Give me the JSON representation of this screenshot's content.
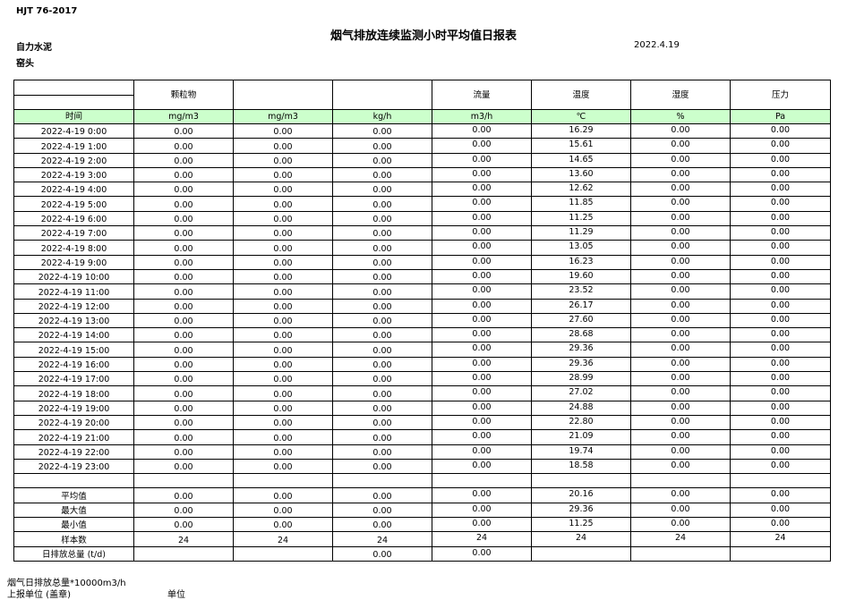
{
  "header": {
    "standard": "HJT  76-2017",
    "title": "烟气排放连续监测小时平均值日报表",
    "company": "自力水泥",
    "unit": "窑头",
    "date": "2022.4.19"
  },
  "columns": [
    "",
    "颗粒物",
    "",
    "",
    "流量",
    "温度",
    "湿度",
    "压力"
  ],
  "units": [
    "时间",
    "mg/m3",
    "mg/m3",
    "kg/h",
    "m3/h",
    "℃",
    "%",
    "Pa"
  ],
  "rows": [
    {
      "time": "2022-4-19 0:00",
      "v": [
        "0.00",
        "0.00",
        "0.00",
        "0.00",
        "16.29",
        "0.00",
        "0.00"
      ]
    },
    {
      "time": "2022-4-19 1:00",
      "v": [
        "0.00",
        "0.00",
        "0.00",
        "0.00",
        "15.61",
        "0.00",
        "0.00"
      ]
    },
    {
      "time": "2022-4-19 2:00",
      "v": [
        "0.00",
        "0.00",
        "0.00",
        "0.00",
        "14.65",
        "0.00",
        "0.00"
      ]
    },
    {
      "time": "2022-4-19 3:00",
      "v": [
        "0.00",
        "0.00",
        "0.00",
        "0.00",
        "13.60",
        "0.00",
        "0.00"
      ]
    },
    {
      "time": "2022-4-19 4:00",
      "v": [
        "0.00",
        "0.00",
        "0.00",
        "0.00",
        "12.62",
        "0.00",
        "0.00"
      ]
    },
    {
      "time": "2022-4-19 5:00",
      "v": [
        "0.00",
        "0.00",
        "0.00",
        "0.00",
        "11.85",
        "0.00",
        "0.00"
      ]
    },
    {
      "time": "2022-4-19 6:00",
      "v": [
        "0.00",
        "0.00",
        "0.00",
        "0.00",
        "11.25",
        "0.00",
        "0.00"
      ]
    },
    {
      "time": "2022-4-19 7:00",
      "v": [
        "0.00",
        "0.00",
        "0.00",
        "0.00",
        "11.29",
        "0.00",
        "0.00"
      ]
    },
    {
      "time": "2022-4-19 8:00",
      "v": [
        "0.00",
        "0.00",
        "0.00",
        "0.00",
        "13.05",
        "0.00",
        "0.00"
      ]
    },
    {
      "time": "2022-4-19 9:00",
      "v": [
        "0.00",
        "0.00",
        "0.00",
        "0.00",
        "16.23",
        "0.00",
        "0.00"
      ]
    },
    {
      "time": "2022-4-19 10:00",
      "v": [
        "0.00",
        "0.00",
        "0.00",
        "0.00",
        "19.60",
        "0.00",
        "0.00"
      ]
    },
    {
      "time": "2022-4-19 11:00",
      "v": [
        "0.00",
        "0.00",
        "0.00",
        "0.00",
        "23.52",
        "0.00",
        "0.00"
      ]
    },
    {
      "time": "2022-4-19 12:00",
      "v": [
        "0.00",
        "0.00",
        "0.00",
        "0.00",
        "26.17",
        "0.00",
        "0.00"
      ]
    },
    {
      "time": "2022-4-19 13:00",
      "v": [
        "0.00",
        "0.00",
        "0.00",
        "0.00",
        "27.60",
        "0.00",
        "0.00"
      ]
    },
    {
      "time": "2022-4-19 14:00",
      "v": [
        "0.00",
        "0.00",
        "0.00",
        "0.00",
        "28.68",
        "0.00",
        "0.00"
      ]
    },
    {
      "time": "2022-4-19 15:00",
      "v": [
        "0.00",
        "0.00",
        "0.00",
        "0.00",
        "29.36",
        "0.00",
        "0.00"
      ]
    },
    {
      "time": "2022-4-19 16:00",
      "v": [
        "0.00",
        "0.00",
        "0.00",
        "0.00",
        "29.36",
        "0.00",
        "0.00"
      ]
    },
    {
      "time": "2022-4-19 17:00",
      "v": [
        "0.00",
        "0.00",
        "0.00",
        "0.00",
        "28.99",
        "0.00",
        "0.00"
      ]
    },
    {
      "time": "2022-4-19 18:00",
      "v": [
        "0.00",
        "0.00",
        "0.00",
        "0.00",
        "27.02",
        "0.00",
        "0.00"
      ]
    },
    {
      "time": "2022-4-19 19:00",
      "v": [
        "0.00",
        "0.00",
        "0.00",
        "0.00",
        "24.88",
        "0.00",
        "0.00"
      ]
    },
    {
      "time": "2022-4-19 20:00",
      "v": [
        "0.00",
        "0.00",
        "0.00",
        "0.00",
        "22.80",
        "0.00",
        "0.00"
      ]
    },
    {
      "time": "2022-4-19 21:00",
      "v": [
        "0.00",
        "0.00",
        "0.00",
        "0.00",
        "21.09",
        "0.00",
        "0.00"
      ]
    },
    {
      "time": "2022-4-19 22:00",
      "v": [
        "0.00",
        "0.00",
        "0.00",
        "0.00",
        "19.74",
        "0.00",
        "0.00"
      ]
    },
    {
      "time": "2022-4-19 23:00",
      "v": [
        "0.00",
        "0.00",
        "0.00",
        "0.00",
        "18.58",
        "0.00",
        "0.00"
      ]
    }
  ],
  "summary": [
    {
      "label": "平均值",
      "v": [
        "0.00",
        "0.00",
        "0.00",
        "0.00",
        "20.16",
        "0.00",
        "0.00"
      ]
    },
    {
      "label": "最大值",
      "v": [
        "0.00",
        "0.00",
        "0.00",
        "0.00",
        "29.36",
        "0.00",
        "0.00"
      ]
    },
    {
      "label": "最小值",
      "v": [
        "0.00",
        "0.00",
        "0.00",
        "0.00",
        "11.25",
        "0.00",
        "0.00"
      ]
    },
    {
      "label": "样本数",
      "v": [
        "24",
        "24",
        "24",
        "24",
        "24",
        "24",
        "24"
      ]
    },
    {
      "label": "日排放总量 (t/d)",
      "v": [
        "",
        "",
        "0.00",
        "0.00",
        "",
        "",
        ""
      ]
    }
  ],
  "footer": {
    "note": "烟气日排放总量*10000m3/h",
    "reporter": "上报单位 (盖章)",
    "unit_label": "单位"
  }
}
